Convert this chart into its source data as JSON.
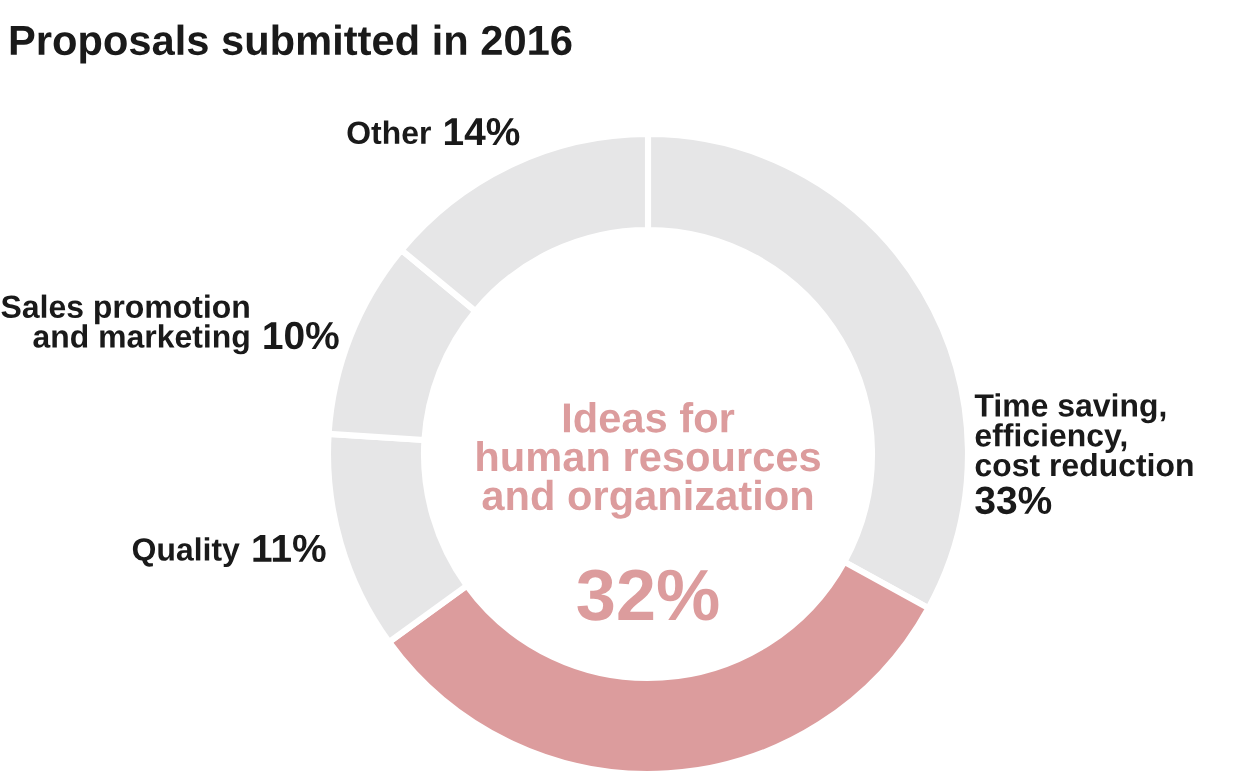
{
  "chart_data": {
    "type": "donut",
    "title": "Proposals submitted in 2016",
    "categories": [
      "Time saving,\nefficiency,\ncost reduction",
      "Ideas for\nhuman resources\nand organization",
      "Quality",
      "Sales promotion\nand marketing",
      "Other"
    ],
    "values": [
      33,
      32,
      11,
      10,
      14
    ],
    "value_labels": [
      "33%",
      "32%",
      "11%",
      "10%",
      "14%"
    ],
    "colors": [
      "#e6e6e7",
      "#dc9c9d",
      "#e6e6e7",
      "#e6e6e7",
      "#e6e6e7"
    ]
  }
}
